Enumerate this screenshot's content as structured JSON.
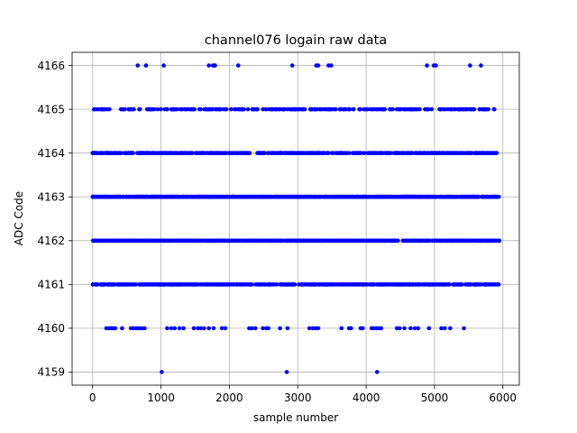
{
  "chart_data": {
    "type": "scatter",
    "title": "channel076 logain raw data",
    "xlabel": "sample number",
    "ylabel": "ADC Code",
    "xlim": [
      -300,
      6240
    ],
    "ylim": [
      4158.7,
      4166.3
    ],
    "xticks": [
      0,
      1000,
      2000,
      3000,
      4000,
      5000,
      6000
    ],
    "yticks": [
      4159,
      4160,
      4161,
      4162,
      4163,
      4164,
      4165,
      4166
    ],
    "grid": true,
    "marker_color": "#0000ff",
    "series": [
      {
        "levels": [
          {
            "y": 4166,
            "x": [
              660,
              780,
              1040,
              1700,
              1760,
              1790,
              2130,
              2920,
              3270,
              3300,
              3450,
              3490,
              4890,
              4990,
              5020,
              5520,
              5680
            ]
          },
          {
            "y": 4165,
            "x_ranges": [
              [
                0,
                280
              ],
              [
                400,
                700
              ],
              [
                780,
                1000
              ],
              [
                1050,
                5920
              ]
            ],
            "count": 300
          },
          {
            "y": 4164,
            "x_ranges": [
              [
                0,
                2300
              ],
              [
                2400,
                5940
              ]
            ],
            "count": 600
          },
          {
            "y": 4163,
            "x_ranges": [
              [
                0,
                5950
              ]
            ],
            "count": 900
          },
          {
            "y": 4162,
            "x_ranges": [
              [
                0,
                5950
              ]
            ],
            "count": 900
          },
          {
            "y": 4161,
            "x_ranges": [
              [
                0,
                5940
              ]
            ],
            "count": 600
          },
          {
            "y": 4160,
            "x": [
              200,
              240,
              270,
              300,
              330,
              430,
              560,
              600,
              640,
              680,
              720,
              760,
              1090,
              1150,
              1200,
              1270,
              1330,
              1480,
              1540,
              1580,
              1630,
              1700,
              1770,
              1890,
              1940,
              2290,
              2330,
              2380,
              2490,
              2540,
              2570,
              2740,
              2850,
              3170,
              3220,
              3260,
              3300,
              3640,
              3750,
              3780,
              3920,
              3950,
              4080,
              4110,
              4150,
              4180,
              4220,
              4450,
              4490,
              4560,
              4650,
              4710,
              4760,
              4920,
              5100,
              5150,
              5230,
              5430
            ]
          },
          {
            "y": 4159,
            "x": [
              1010,
              2840,
              4160
            ]
          }
        ]
      }
    ]
  }
}
